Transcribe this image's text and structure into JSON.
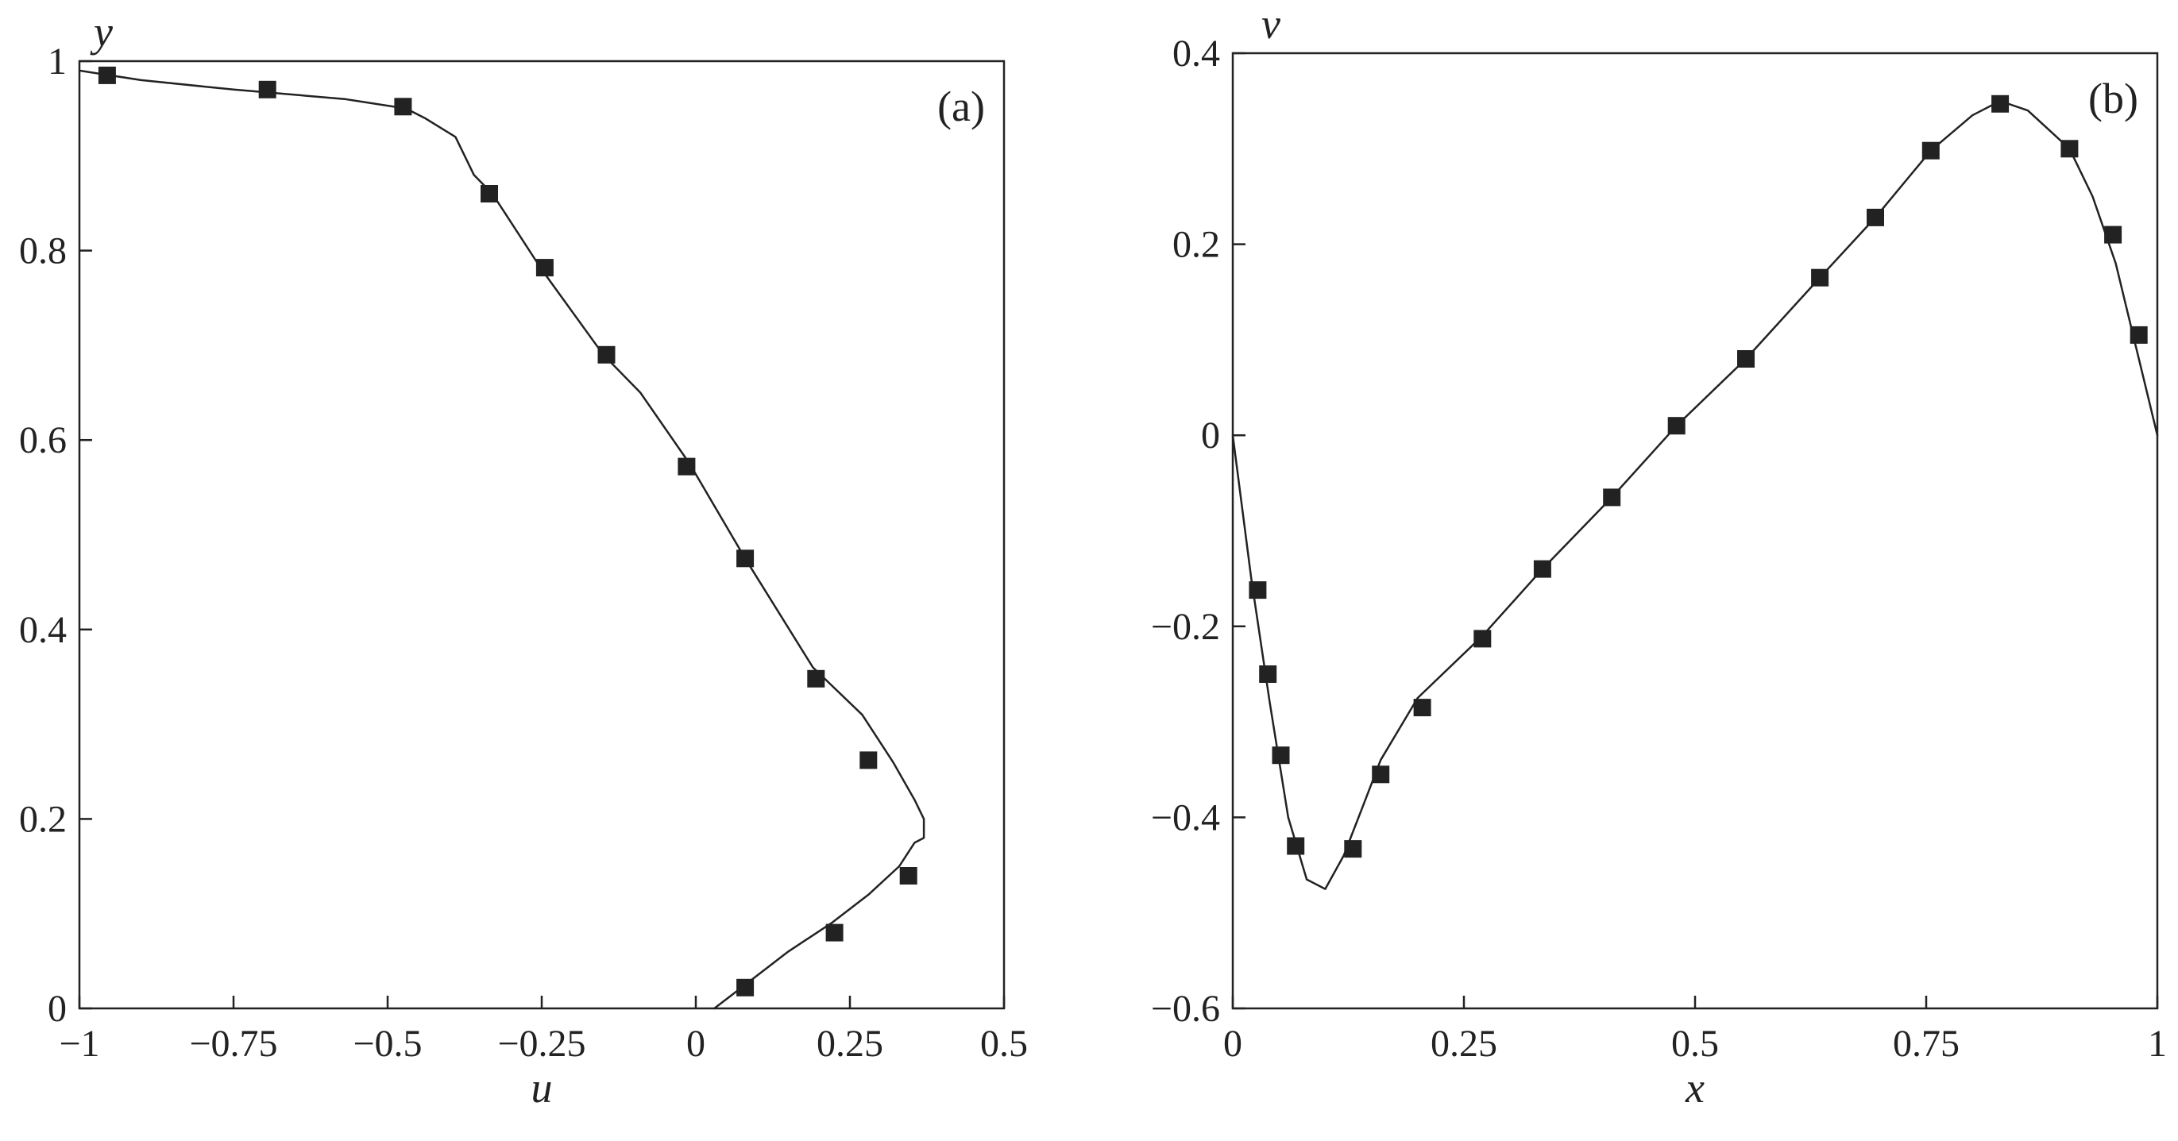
{
  "chart_data": [
    {
      "type": "line",
      "panel_label": "(a)",
      "xlabel": "u",
      "ylabel": "y",
      "xlim": [
        -1,
        0.5
      ],
      "ylim": [
        0,
        1
      ],
      "x_ticks": [
        -1,
        -0.75,
        -0.5,
        -0.25,
        0,
        0.25,
        0.5
      ],
      "x_tick_labels": [
        "−1",
        "−0.75",
        "−0.5",
        "−0.25",
        "0",
        "0.25",
        "0.5"
      ],
      "y_ticks": [
        0,
        0.2,
        0.4,
        0.6,
        0.8,
        1
      ],
      "y_tick_labels": [
        "0",
        "0.2",
        "0.4",
        "0.6",
        "0.8",
        "1"
      ],
      "grid": false,
      "series": [
        {
          "style": "solid-line",
          "x": [
            0.03,
            0.08,
            0.15,
            0.22,
            0.28,
            0.33,
            0.355,
            0.37,
            0.37,
            0.355,
            0.32,
            0.27,
            0.19,
            0.08,
            -0.01,
            -0.09,
            -0.15,
            -0.25,
            -0.33,
            -0.36,
            -0.39,
            -0.44,
            -0.47,
            -0.57,
            -0.75,
            -0.9,
            -1.0
          ],
          "y": [
            0.0,
            0.025,
            0.06,
            0.09,
            0.12,
            0.15,
            0.175,
            0.18,
            0.2,
            0.22,
            0.26,
            0.31,
            0.36,
            0.475,
            0.575,
            0.65,
            0.69,
            0.78,
            0.86,
            0.88,
            0.92,
            0.94,
            0.95,
            0.96,
            0.97,
            0.98,
            0.99
          ]
        },
        {
          "style": "square-markers",
          "x": [
            0.08,
            0.225,
            0.345,
            0.28,
            0.195,
            0.08,
            -0.015,
            -0.145,
            -0.245,
            -0.335,
            -0.475,
            -0.695,
            -0.955
          ],
          "y": [
            0.022,
            0.08,
            0.14,
            0.262,
            0.348,
            0.475,
            0.572,
            0.69,
            0.782,
            0.86,
            0.952,
            0.97,
            0.985
          ]
        }
      ]
    },
    {
      "type": "line",
      "panel_label": "(b)",
      "xlabel": "x",
      "ylabel": "v",
      "xlim": [
        0,
        1
      ],
      "ylim": [
        -0.6,
        0.4
      ],
      "x_ticks": [
        0,
        0.25,
        0.5,
        0.75,
        1
      ],
      "x_tick_labels": [
        "0",
        "0.25",
        "0.5",
        "0.75",
        "1"
      ],
      "y_ticks": [
        -0.6,
        -0.4,
        -0.2,
        0,
        0.2,
        0.4
      ],
      "y_tick_labels": [
        "−0.6",
        "−0.4",
        "−0.2",
        "0",
        "0.2",
        "0.4"
      ],
      "grid": false,
      "series": [
        {
          "style": "solid-line",
          "x": [
            0.0,
            0.02,
            0.04,
            0.06,
            0.08,
            0.1,
            0.12,
            0.14,
            0.16,
            0.2,
            0.27,
            0.335,
            0.41,
            0.48,
            0.555,
            0.635,
            0.695,
            0.755,
            0.8,
            0.83,
            0.86,
            0.905,
            0.93,
            0.955,
            0.975,
            0.99,
            1.0
          ],
          "y": [
            0.0,
            -0.15,
            -0.28,
            -0.4,
            -0.465,
            -0.475,
            -0.44,
            -0.39,
            -0.34,
            -0.275,
            -0.21,
            -0.14,
            -0.065,
            0.01,
            0.08,
            0.165,
            0.228,
            0.298,
            0.335,
            0.35,
            0.34,
            0.3,
            0.25,
            0.18,
            0.1,
            0.04,
            0.0
          ]
        },
        {
          "style": "square-markers",
          "x": [
            0.027,
            0.038,
            0.052,
            0.068,
            0.13,
            0.16,
            0.205,
            0.27,
            0.335,
            0.41,
            0.48,
            0.555,
            0.635,
            0.695,
            0.755,
            0.83,
            0.905,
            0.952,
            0.98
          ],
          "y": [
            -0.162,
            -0.25,
            -0.335,
            -0.43,
            -0.433,
            -0.355,
            -0.285,
            -0.213,
            -0.14,
            -0.065,
            0.01,
            0.08,
            0.165,
            0.228,
            0.298,
            0.347,
            0.3,
            0.21,
            0.105
          ]
        }
      ]
    }
  ]
}
